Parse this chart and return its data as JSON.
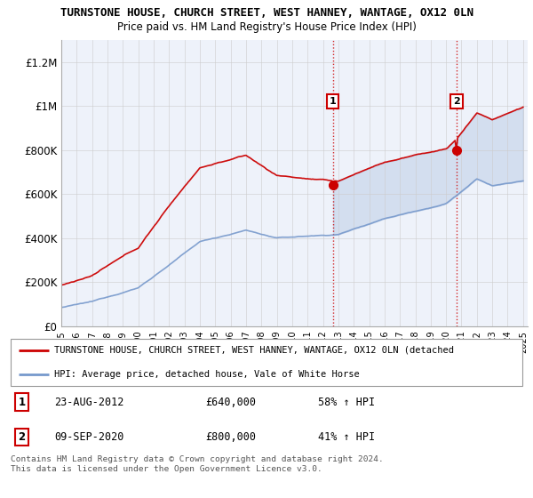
{
  "title": "TURNSTONE HOUSE, CHURCH STREET, WEST HANNEY, WANTAGE, OX12 0LN",
  "subtitle": "Price paid vs. HM Land Registry's House Price Index (HPI)",
  "ylim": [
    0,
    1300000
  ],
  "yticks": [
    0,
    200000,
    400000,
    600000,
    800000,
    1000000,
    1200000
  ],
  "ytick_labels": [
    "£0",
    "£200K",
    "£400K",
    "£600K",
    "£800K",
    "£1M",
    "£1.2M"
  ],
  "background_color": "#ffffff",
  "plot_bg_color": "#eef2fa",
  "grid_color": "#cccccc",
  "hpi_color": "#7799cc",
  "price_color": "#cc0000",
  "sale1_year": 2012.65,
  "sale1_price": 640000,
  "sale1_hpi_price": 405000,
  "sale2_year": 2020.69,
  "sale2_price": 800000,
  "sale2_hpi_price": 565000,
  "legend_line1": "TURNSTONE HOUSE, CHURCH STREET, WEST HANNEY, WANTAGE, OX12 0LN (detached",
  "legend_line2": "HPI: Average price, detached house, Vale of White Horse",
  "annotation1_label": "1",
  "annotation1_date": "23-AUG-2012",
  "annotation1_price": "£640,000",
  "annotation1_hpi": "58% ↑ HPI",
  "annotation2_label": "2",
  "annotation2_date": "09-SEP-2020",
  "annotation2_price": "£800,000",
  "annotation2_hpi": "41% ↑ HPI",
  "footnote": "Contains HM Land Registry data © Crown copyright and database right 2024.\nThis data is licensed under the Open Government Licence v3.0."
}
